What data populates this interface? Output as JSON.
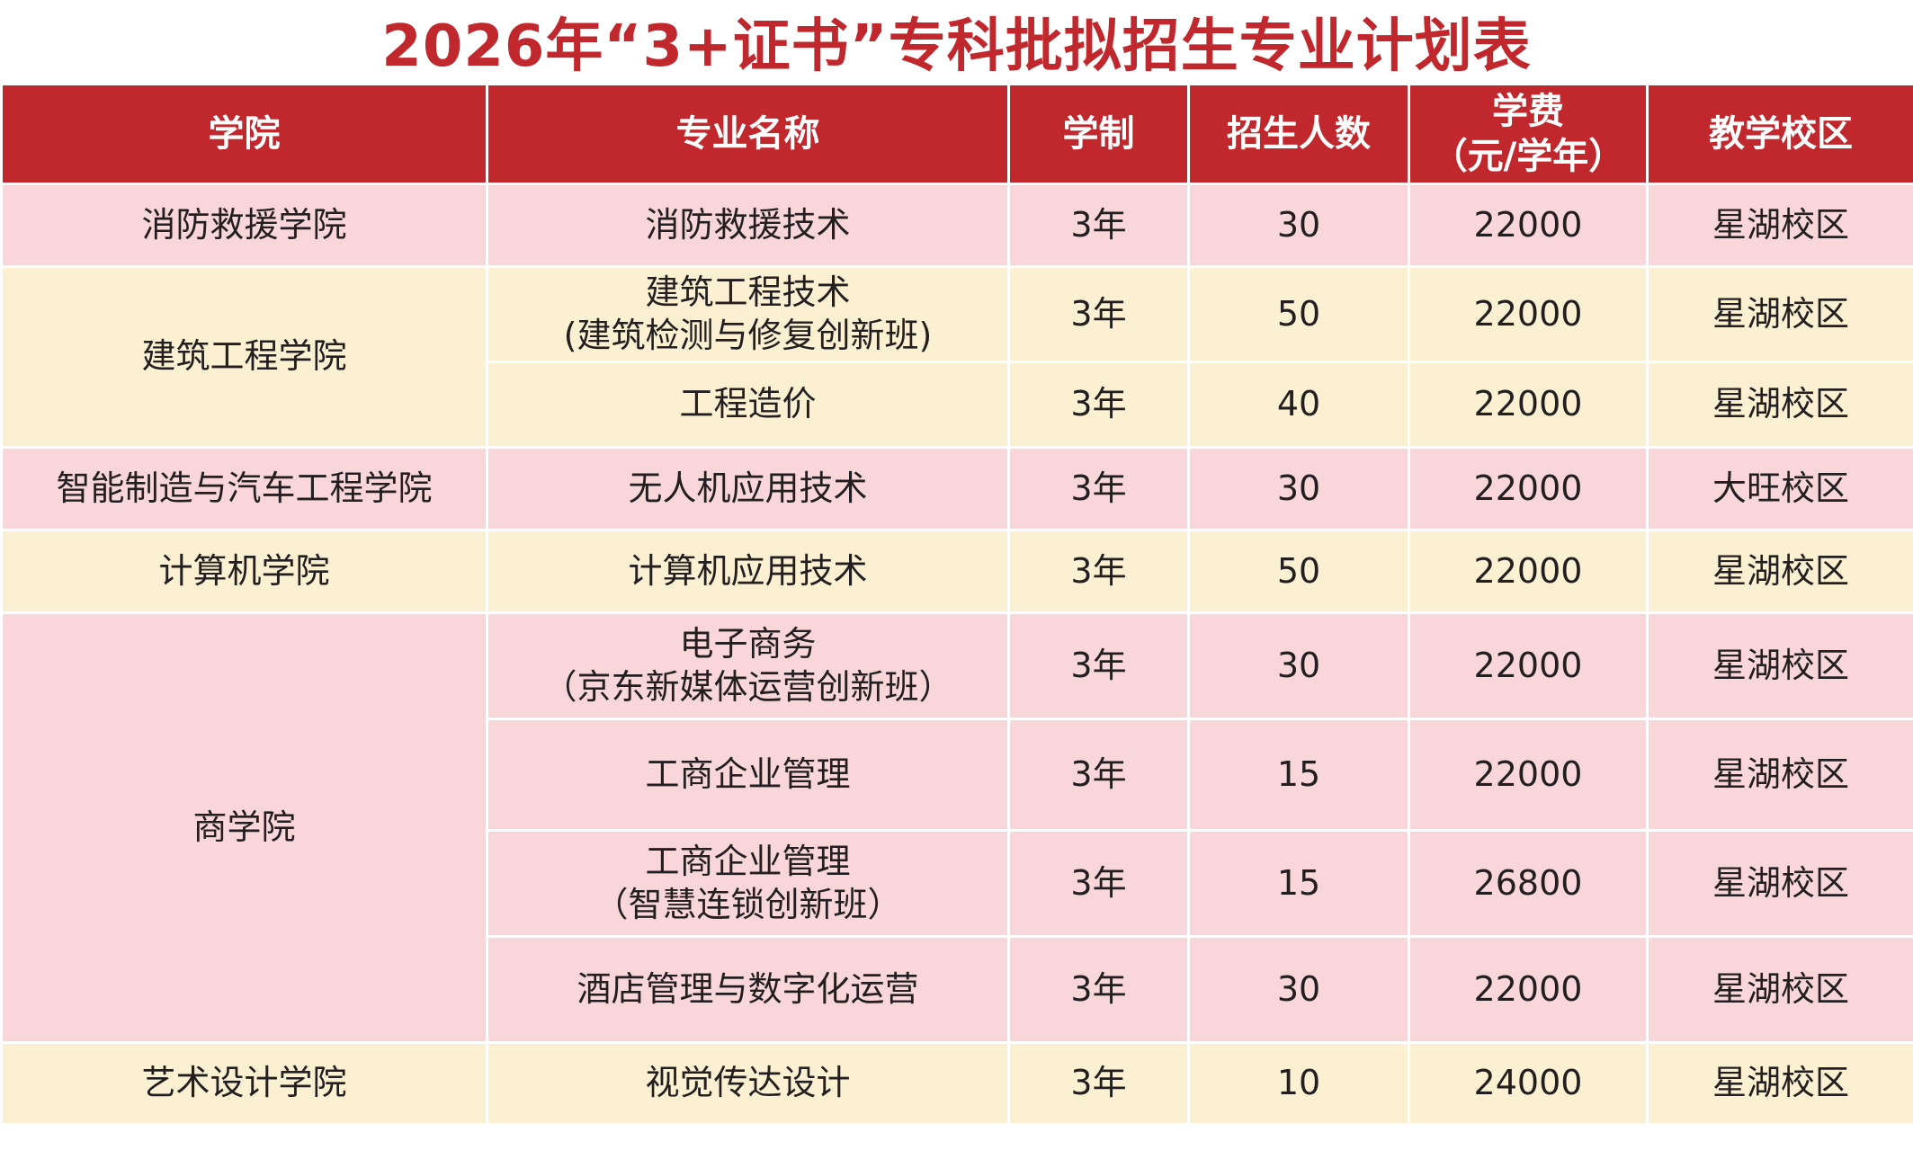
{
  "title": "2026年“3+证书”专科批拟招生专业计划表",
  "colors": {
    "header_bg": "#c0282d",
    "title_text": "#c0282d",
    "row_pink": "#f9d6d9",
    "row_cream": "#fbf0d2"
  },
  "headers": {
    "college": "学院",
    "major": "专业名称",
    "duration": "学制",
    "enrollment": "招生人数",
    "tuition_line1": "学费",
    "tuition_line2": "（元/学年）",
    "campus": "教学校区"
  },
  "colleges": [
    "消防救援学院",
    "建筑工程学院",
    "智能制造与汽车工程学院",
    "计算机学院",
    "商学院",
    "艺术设计学院"
  ],
  "rows": [
    {
      "major": "消防救援技术",
      "major_sub": "",
      "duration": "3年",
      "enrollment": "30",
      "tuition": "22000",
      "campus": "星湖校区"
    },
    {
      "major": "建筑工程技术",
      "major_sub": "(建筑检测与修复创新班)",
      "duration": "3年",
      "enrollment": "50",
      "tuition": "22000",
      "campus": "星湖校区"
    },
    {
      "major": "工程造价",
      "major_sub": "",
      "duration": "3年",
      "enrollment": "40",
      "tuition": "22000",
      "campus": "星湖校区"
    },
    {
      "major": "无人机应用技术",
      "major_sub": "",
      "duration": "3年",
      "enrollment": "30",
      "tuition": "22000",
      "campus": "大旺校区"
    },
    {
      "major": "计算机应用技术",
      "major_sub": "",
      "duration": "3年",
      "enrollment": "50",
      "tuition": "22000",
      "campus": "星湖校区"
    },
    {
      "major": "电子商务",
      "major_sub": "（京东新媒体运营创新班）",
      "duration": "3年",
      "enrollment": "30",
      "tuition": "22000",
      "campus": "星湖校区"
    },
    {
      "major": "工商企业管理",
      "major_sub": "",
      "duration": "3年",
      "enrollment": "15",
      "tuition": "22000",
      "campus": "星湖校区"
    },
    {
      "major": "工商企业管理",
      "major_sub": "（智慧连锁创新班）",
      "duration": "3年",
      "enrollment": "15",
      "tuition": "26800",
      "campus": "星湖校区"
    },
    {
      "major": "酒店管理与数字化运营",
      "major_sub": "",
      "duration": "3年",
      "enrollment": "30",
      "tuition": "22000",
      "campus": "星湖校区"
    },
    {
      "major": "视觉传达设计",
      "major_sub": "",
      "duration": "3年",
      "enrollment": "10",
      "tuition": "24000",
      "campus": "星湖校区"
    }
  ]
}
